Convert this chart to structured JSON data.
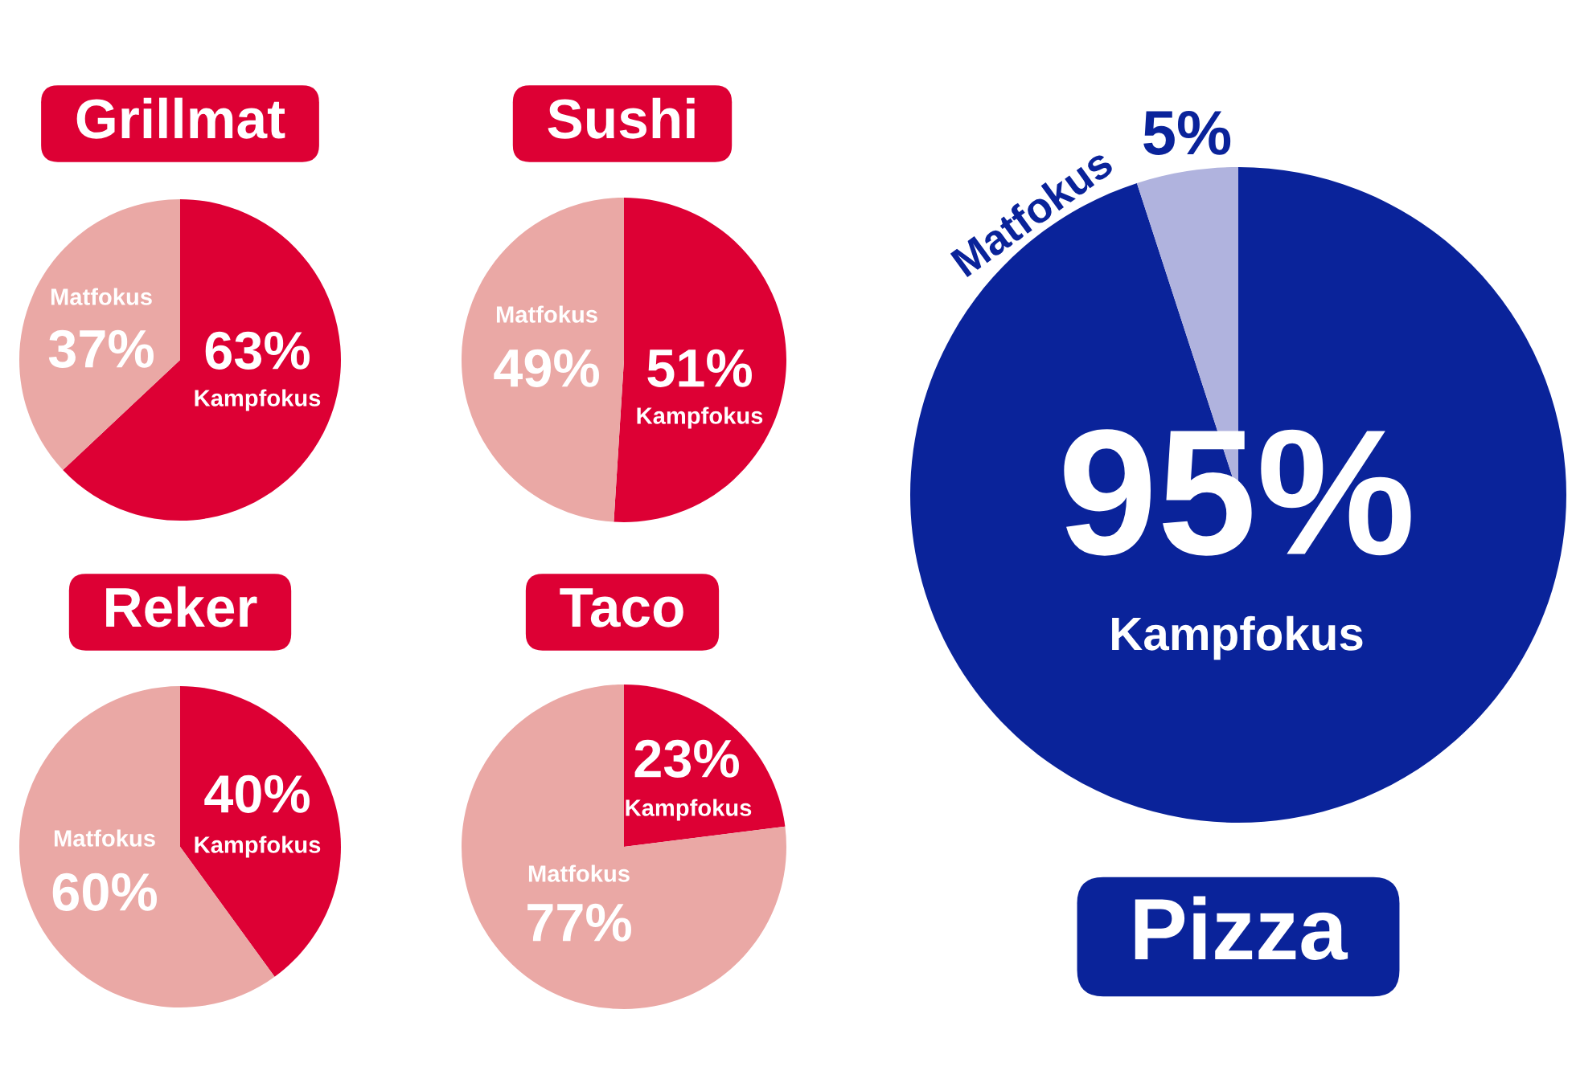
{
  "chart_data": [
    {
      "type": "pie",
      "title": "Grillmat",
      "categories": [
        "Kampfokus",
        "Matfokus"
      ],
      "values": [
        63,
        37
      ],
      "colors": [
        "#dd0034",
        "#eaa8a5"
      ],
      "value_labels": [
        "63%",
        "37%"
      ]
    },
    {
      "type": "pie",
      "title": "Sushi",
      "categories": [
        "Kampfokus",
        "Matfokus"
      ],
      "values": [
        51,
        49
      ],
      "colors": [
        "#dd0034",
        "#eaa8a5"
      ],
      "value_labels": [
        "51%",
        "49%"
      ]
    },
    {
      "type": "pie",
      "title": "Reker",
      "categories": [
        "Kampfokus",
        "Matfokus"
      ],
      "values": [
        40,
        60
      ],
      "colors": [
        "#dd0034",
        "#eaa8a5"
      ],
      "value_labels": [
        "40%",
        "60%"
      ]
    },
    {
      "type": "pie",
      "title": "Taco",
      "categories": [
        "Kampfokus",
        "Matfokus"
      ],
      "values": [
        23,
        77
      ],
      "colors": [
        "#dd0034",
        "#eaa8a5"
      ],
      "value_labels": [
        "23%",
        "77%"
      ]
    },
    {
      "type": "pie",
      "title": "Pizza",
      "categories": [
        "Kampfokus",
        "Matfokus"
      ],
      "values": [
        95,
        5
      ],
      "colors": [
        "#0a239a",
        "#b0b3de"
      ],
      "value_labels": [
        "95%",
        "5%"
      ]
    }
  ]
}
